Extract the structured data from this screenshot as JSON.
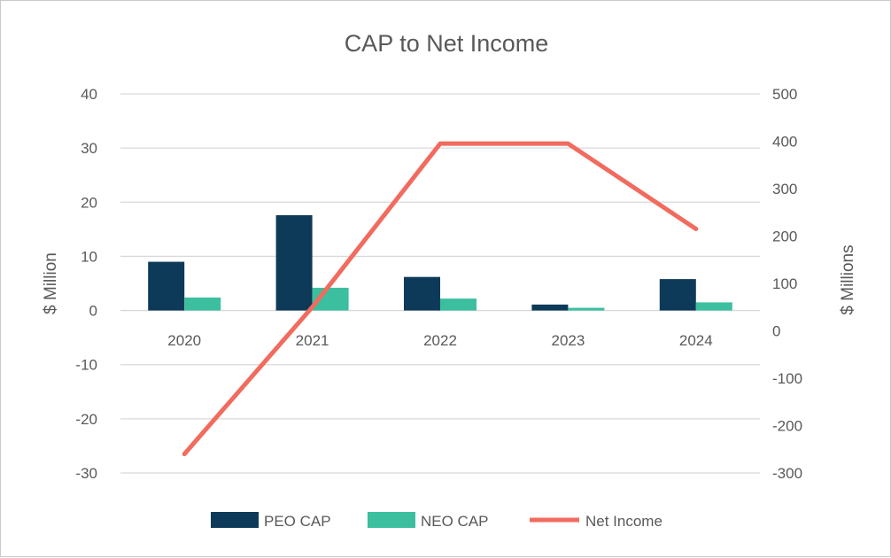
{
  "chart_data": {
    "type": "bar",
    "title": "CAP to Net Income",
    "categories": [
      "2020",
      "2021",
      "2022",
      "2023",
      "2024"
    ],
    "series": [
      {
        "name": "PEO CAP",
        "type": "bar",
        "axis": "left",
        "color": "#0e3a5a",
        "values": [
          9.0,
          17.6,
          6.2,
          1.1,
          5.8
        ]
      },
      {
        "name": "NEO CAP",
        "type": "bar",
        "axis": "left",
        "color": "#3bbf9f",
        "values": [
          2.4,
          4.2,
          2.2,
          0.5,
          1.5
        ]
      },
      {
        "name": "Net Income",
        "type": "line",
        "axis": "right",
        "color": "#f16b5f",
        "values": [
          -260,
          50,
          395,
          395,
          215
        ]
      }
    ],
    "ylabel": "$ Million",
    "y2label": "$ Millions",
    "ylim": [
      -30,
      40
    ],
    "y2lim": [
      -300,
      500
    ],
    "yticks": [
      "40",
      "30",
      "20",
      "10",
      "0",
      "-10",
      "-20",
      "-30"
    ],
    "y2ticks": [
      "500",
      "400",
      "300",
      "200",
      "100",
      "0",
      "-100",
      "-200",
      "-300"
    ],
    "grid": true,
    "legend": "bottom"
  }
}
